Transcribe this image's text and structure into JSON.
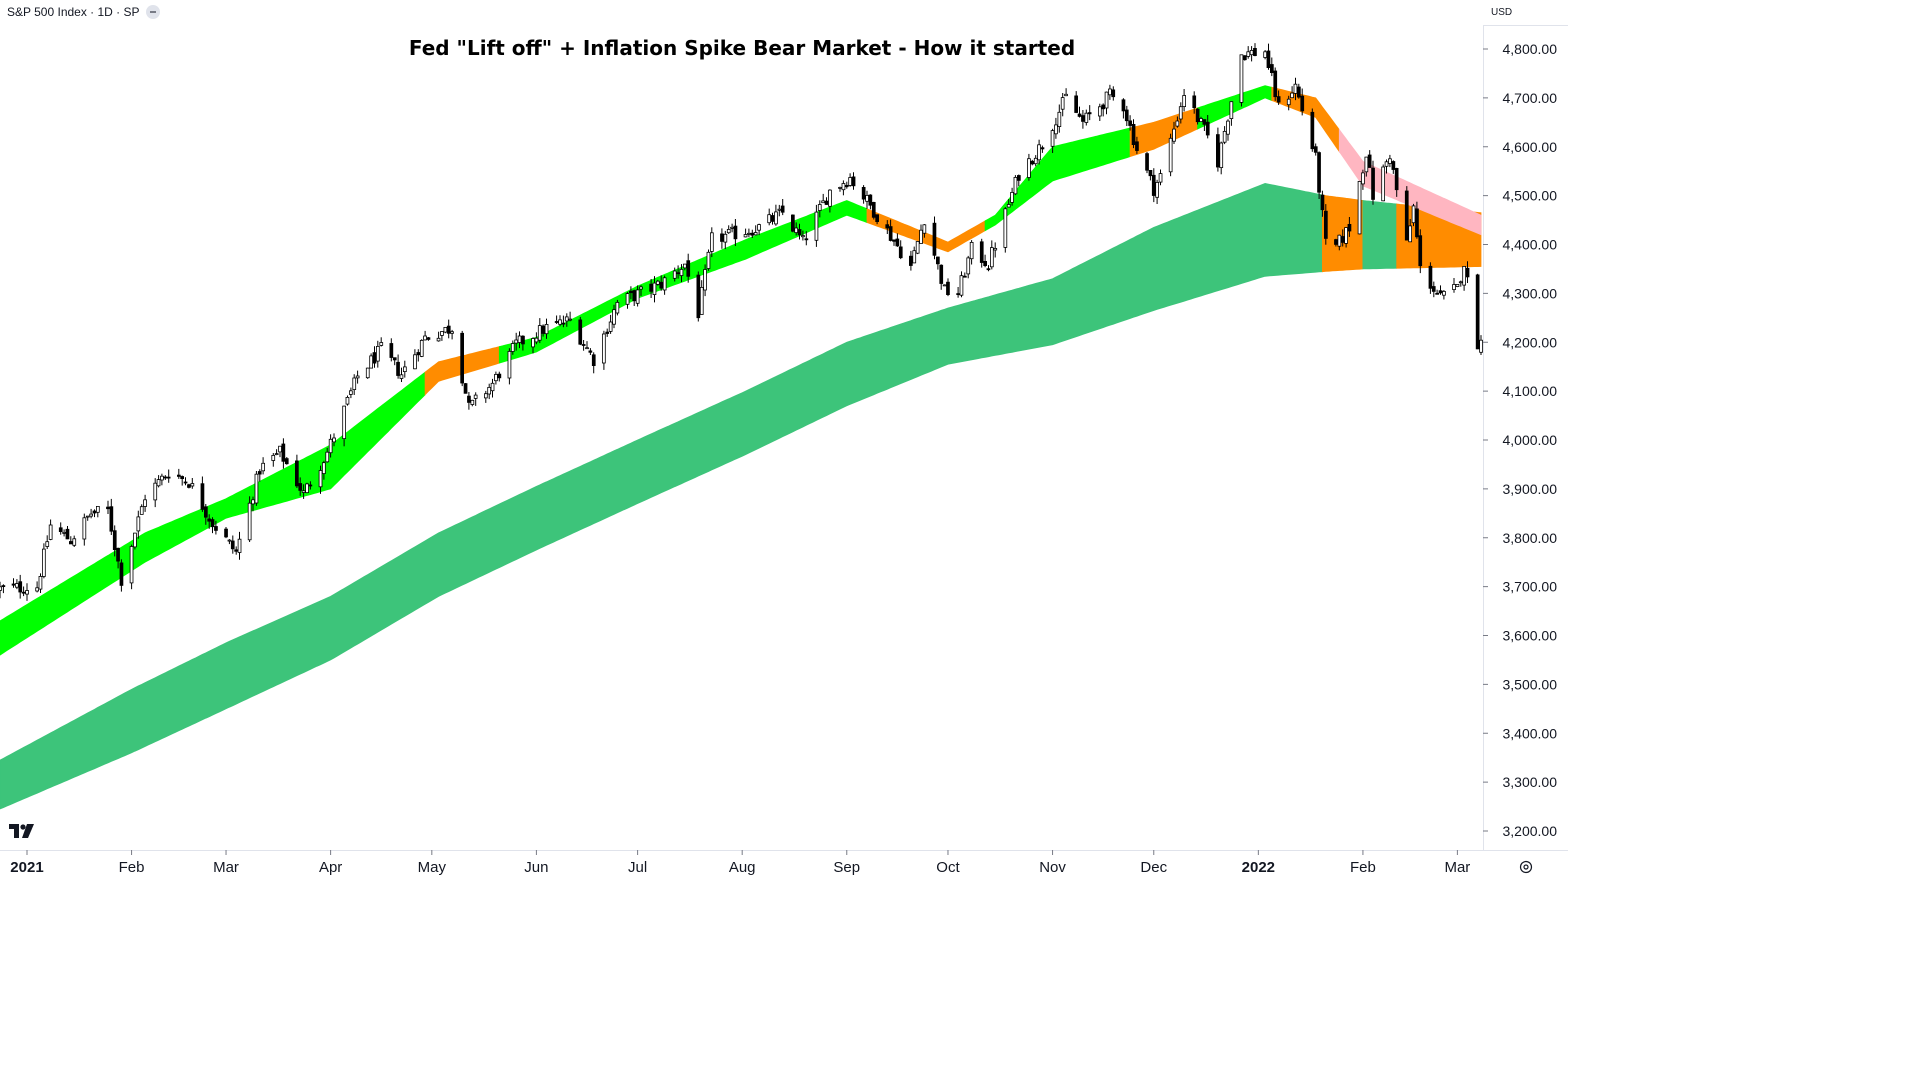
{
  "header": {
    "symbol_label": "S&P 500 Index · 1D · SP",
    "currency": "USD"
  },
  "chart_data": {
    "type": "candlestick",
    "title": "Fed \"Lift off\" + Inflation Spike Bear Market - How it started",
    "ylim": [
      3160,
      4860
    ],
    "y_ticks": [
      4800,
      4700,
      4600,
      4500,
      4400,
      4300,
      4200,
      4100,
      4000,
      3900,
      3800,
      3700,
      3600,
      3500,
      3400,
      3300,
      3200
    ],
    "y_tick_labels": [
      "4,800.00",
      "4,700.00",
      "4,600.00",
      "4,500.00",
      "4,400.00",
      "4,300.00",
      "4,200.00",
      "4,100.00",
      "4,000.00",
      "3,900.00",
      "3,800.00",
      "3,700.00",
      "3,600.00",
      "3,500.00",
      "3,400.00",
      "3,300.00",
      "3,200.00"
    ],
    "x_labels": [
      {
        "label": "2021",
        "date": "2021-01-01",
        "bold": true
      },
      {
        "label": "Feb",
        "date": "2021-02-01"
      },
      {
        "label": "Mar",
        "date": "2021-03-01"
      },
      {
        "label": "Apr",
        "date": "2021-04-01"
      },
      {
        "label": "May",
        "date": "2021-05-01"
      },
      {
        "label": "Jun",
        "date": "2021-06-01"
      },
      {
        "label": "Jul",
        "date": "2021-07-01"
      },
      {
        "label": "Aug",
        "date": "2021-08-01"
      },
      {
        "label": "Sep",
        "date": "2021-09-01"
      },
      {
        "label": "Oct",
        "date": "2021-10-01"
      },
      {
        "label": "Nov",
        "date": "2021-11-01"
      },
      {
        "label": "Dec",
        "date": "2021-12-01"
      },
      {
        "label": "2022",
        "date": "2022-01-01",
        "bold": true
      },
      {
        "label": "Feb",
        "date": "2022-02-01"
      },
      {
        "label": "Mar",
        "date": "2022-03-01"
      }
    ],
    "x_range": [
      "2020-12-24",
      "2022-03-08"
    ],
    "close_path": [
      [
        "2020-12-24",
        3695
      ],
      [
        "2021-01-04",
        3700
      ],
      [
        "2021-01-08",
        3825
      ],
      [
        "2021-01-14",
        3795
      ],
      [
        "2021-01-20",
        3850
      ],
      [
        "2021-01-25",
        3855
      ],
      [
        "2021-01-29",
        3715
      ],
      [
        "2021-02-05",
        3885
      ],
      [
        "2021-02-12",
        3935
      ],
      [
        "2021-02-18",
        3915
      ],
      [
        "2021-02-25",
        3830
      ],
      [
        "2021-03-04",
        3770
      ],
      [
        "2021-03-11",
        3940
      ],
      [
        "2021-03-17",
        3975
      ],
      [
        "2021-03-24",
        3890
      ],
      [
        "2021-03-31",
        3975
      ],
      [
        "2021-04-09",
        4130
      ],
      [
        "2021-04-16",
        4185
      ],
      [
        "2021-04-22",
        4135
      ],
      [
        "2021-04-29",
        4210
      ],
      [
        "2021-05-07",
        4230
      ],
      [
        "2021-05-12",
        4065
      ],
      [
        "2021-05-19",
        4115
      ],
      [
        "2021-05-26",
        4195
      ],
      [
        "2021-06-04",
        4230
      ],
      [
        "2021-06-11",
        4245
      ],
      [
        "2021-06-18",
        4165
      ],
      [
        "2021-06-25",
        4280
      ],
      [
        "2021-07-08",
        4320
      ],
      [
        "2021-07-15",
        4360
      ],
      [
        "2021-07-19",
        4260
      ],
      [
        "2021-07-23",
        4410
      ],
      [
        "2021-08-06",
        4435
      ],
      [
        "2021-08-13",
        4465
      ],
      [
        "2021-08-19",
        4405
      ],
      [
        "2021-08-27",
        4510
      ],
      [
        "2021-09-02",
        4537
      ],
      [
        "2021-09-10",
        4460
      ],
      [
        "2021-09-20",
        4355
      ],
      [
        "2021-09-24",
        4455
      ],
      [
        "2021-09-30",
        4305
      ],
      [
        "2021-10-04",
        4300
      ],
      [
        "2021-10-08",
        4390
      ],
      [
        "2021-10-13",
        4360
      ],
      [
        "2021-10-22",
        4545
      ],
      [
        "2021-10-29",
        4605
      ],
      [
        "2021-11-05",
        4700
      ],
      [
        "2021-11-10",
        4650
      ],
      [
        "2021-11-18",
        4705
      ],
      [
        "2021-11-22",
        4685
      ],
      [
        "2021-11-26",
        4595
      ],
      [
        "2021-12-01",
        4515
      ],
      [
        "2021-12-03",
        4540
      ],
      [
        "2021-12-10",
        4710
      ],
      [
        "2021-12-17",
        4620
      ],
      [
        "2021-12-20",
        4570
      ],
      [
        "2021-12-27",
        4790
      ],
      [
        "2022-01-03",
        4795
      ],
      [
        "2022-01-07",
        4680
      ],
      [
        "2022-01-12",
        4725
      ],
      [
        "2022-01-18",
        4575
      ],
      [
        "2022-01-21",
        4400
      ],
      [
        "2022-01-24",
        4395
      ],
      [
        "2022-01-28",
        4435
      ],
      [
        "2022-02-02",
        4590
      ],
      [
        "2022-02-04",
        4500
      ],
      [
        "2022-02-09",
        4585
      ],
      [
        "2022-02-14",
        4400
      ],
      [
        "2022-02-16",
        4475
      ],
      [
        "2022-02-18",
        4350
      ],
      [
        "2022-02-24",
        4290
      ],
      [
        "2022-03-01",
        4310
      ],
      [
        "2022-03-03",
        4365
      ],
      [
        "2022-03-07",
        4200
      ]
    ],
    "bands": [
      {
        "name": "fast",
        "points": [
          [
            "2020-12-24",
            3560,
            3630
          ],
          [
            "2021-02-05",
            3750,
            3810
          ],
          [
            "2021-03-01",
            3840,
            3880
          ],
          [
            "2021-04-01",
            3900,
            3990
          ],
          [
            "2021-05-03",
            4120,
            4160
          ],
          [
            "2021-06-01",
            4180,
            4210
          ],
          [
            "2021-07-01",
            4290,
            4315
          ],
          [
            "2021-08-02",
            4370,
            4410
          ],
          [
            "2021-09-01",
            4460,
            4490
          ],
          [
            "2021-10-01",
            4385,
            4405
          ],
          [
            "2021-10-15",
            4440,
            4460
          ],
          [
            "2021-11-01",
            4530,
            4600
          ],
          [
            "2021-12-01",
            4595,
            4650
          ],
          [
            "2022-01-03",
            4700,
            4725
          ],
          [
            "2022-01-18",
            4660,
            4700
          ],
          [
            "2022-02-01",
            4520,
            4570
          ],
          [
            "2022-03-08",
            4420,
            4460
          ]
        ],
        "colors": [
          {
            "from": "2020-12-24",
            "to": "2021-04-29",
            "color": "#00ff00"
          },
          {
            "from": "2021-04-29",
            "to": "2021-05-21",
            "color": "#ff8c00"
          },
          {
            "from": "2021-05-21",
            "to": "2021-09-07",
            "color": "#00ff00"
          },
          {
            "from": "2021-09-07",
            "to": "2021-10-12",
            "color": "#ff8c00"
          },
          {
            "from": "2021-10-12",
            "to": "2021-11-24",
            "color": "#00ff00"
          },
          {
            "from": "2021-11-24",
            "to": "2021-12-14",
            "color": "#ff8c00"
          },
          {
            "from": "2021-12-14",
            "to": "2022-01-05",
            "color": "#00ff00"
          },
          {
            "from": "2022-01-05",
            "to": "2022-01-25",
            "color": "#ff8c00"
          },
          {
            "from": "2022-01-25",
            "to": "2022-03-08",
            "color": "#ffb6c1"
          }
        ]
      },
      {
        "name": "slow",
        "points": [
          [
            "2020-12-24",
            3245,
            3345
          ],
          [
            "2021-02-01",
            3360,
            3490
          ],
          [
            "2021-03-01",
            3450,
            3585
          ],
          [
            "2021-04-01",
            3550,
            3680
          ],
          [
            "2021-05-03",
            3680,
            3810
          ],
          [
            "2021-06-01",
            3775,
            3905
          ],
          [
            "2021-07-01",
            3870,
            4000
          ],
          [
            "2021-08-02",
            3970,
            4100
          ],
          [
            "2021-09-01",
            4070,
            4200
          ],
          [
            "2021-10-01",
            4155,
            4270
          ],
          [
            "2021-11-01",
            4195,
            4330
          ],
          [
            "2021-12-01",
            4265,
            4435
          ],
          [
            "2022-01-03",
            4335,
            4525
          ],
          [
            "2022-01-21",
            4345,
            4500
          ],
          [
            "2022-02-01",
            4350,
            4490
          ],
          [
            "2022-03-08",
            4355,
            4465
          ]
        ],
        "colors": [
          {
            "from": "2020-12-24",
            "to": "2022-01-20",
            "color": "#3dc47a"
          },
          {
            "from": "2022-01-20",
            "to": "2022-02-01",
            "color": "#ff8c00"
          },
          {
            "from": "2022-02-01",
            "to": "2022-02-11",
            "color": "#3dc47a"
          },
          {
            "from": "2022-02-11",
            "to": "2022-03-08",
            "color": "#ff8c00"
          }
        ]
      }
    ],
    "grid": false,
    "legend": "none"
  }
}
